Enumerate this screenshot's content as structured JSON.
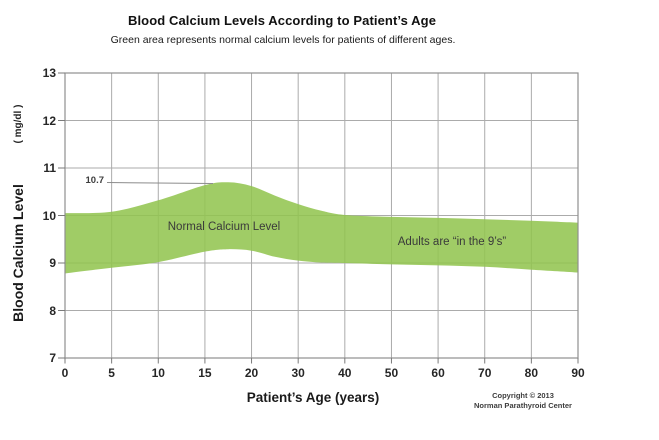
{
  "chart_data": {
    "type": "area",
    "title": "Blood Calcium Levels According to Patient’s Age",
    "subtitle": "Green area represents normal calcium levels for patients of different ages.",
    "xlabel": "Patient’s  Age (years)",
    "ylabel": "Blood Calcium Level",
    "ylabel_units": "( mg/dl )",
    "ylim": [
      7,
      13
    ],
    "y_ticks": [
      13,
      12,
      11,
      10,
      9,
      8,
      7
    ],
    "x_tick_labels": [
      "0",
      "5",
      "10",
      "15",
      "20",
      "30",
      "40",
      "50",
      "60",
      "70",
      "80",
      "90"
    ],
    "x_scale_note": "ticks evenly spaced; 5-year steps up to age 20, then 10-year steps to 90",
    "grid": "on",
    "band": {
      "name": "Normal Calcium Level",
      "points": [
        {
          "age": 0,
          "low": 8.78,
          "high": 10.05
        },
        {
          "age": 5,
          "low": 8.9,
          "high": 10.08
        },
        {
          "age": 10,
          "low": 9.02,
          "high": 10.32
        },
        {
          "age": 15,
          "low": 9.24,
          "high": 10.64
        },
        {
          "age": 17.5,
          "low": 9.29,
          "high": 10.7
        },
        {
          "age": 20,
          "low": 9.26,
          "high": 10.62
        },
        {
          "age": 25,
          "low": 9.13,
          "high": 10.42
        },
        {
          "age": 30,
          "low": 9.05,
          "high": 10.24
        },
        {
          "age": 35,
          "low": 9.01,
          "high": 10.1
        },
        {
          "age": 40,
          "low": 9.0,
          "high": 10.01
        },
        {
          "age": 50,
          "low": 8.97,
          "high": 9.97
        },
        {
          "age": 60,
          "low": 8.95,
          "high": 9.95
        },
        {
          "age": 70,
          "low": 8.92,
          "high": 9.92
        },
        {
          "age": 80,
          "low": 8.86,
          "high": 9.89
        },
        {
          "age": 90,
          "low": 8.8,
          "high": 9.85
        }
      ]
    },
    "annotations": {
      "peak_value_label": "10.7",
      "band_label": "Normal Calcium Level",
      "adults_label": "Adults are “in the 9’s”"
    },
    "credit": {
      "line1": "Copyright © 2013",
      "line2": "Norman Parathyroid Center"
    },
    "colors": {
      "band_green": "#92C44F",
      "band_green_rendered": "#A2CD68",
      "gridline": "#ABABAB",
      "plot_border": "#8F8F8F",
      "text_dark": "#262626"
    },
    "legend": "none"
  }
}
